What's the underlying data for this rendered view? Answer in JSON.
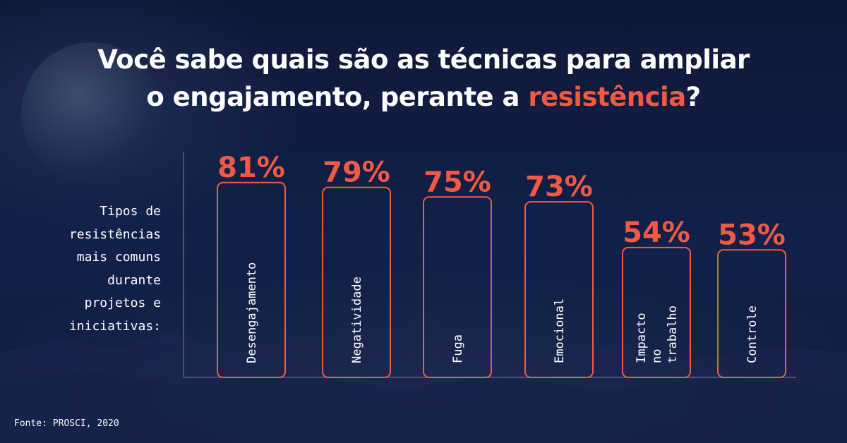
{
  "title_part1": "Você sabe quais são as técnicas para ampliar",
  "title_part2": "o engajamento, perante a",
  "title_highlight": "resistência",
  "title_end": "?",
  "side_label": "Tipos de\nresistências\nmais comuns\ndurante\nprojetos e\niniciativas:",
  "source": "Fonte: PROSCI, 2020",
  "colors": {
    "background": "#0f1a3a",
    "accent": "#f05a45",
    "text": "#ffffff",
    "axis": "#5a6580"
  },
  "chart_data": {
    "type": "bar",
    "categories": [
      "Desengajamento",
      "Negatividade",
      "Fuga",
      "Emocional",
      "Impacto\nno\ntrabalho",
      "Controle"
    ],
    "values": [
      81,
      79,
      75,
      73,
      54,
      53
    ],
    "value_labels": [
      "81%",
      "79%",
      "75%",
      "73%",
      "54%",
      "53%"
    ],
    "title": "",
    "xlabel": "",
    "ylabel": "",
    "ylim": [
      0,
      100
    ],
    "grid": false,
    "legend": "none"
  }
}
